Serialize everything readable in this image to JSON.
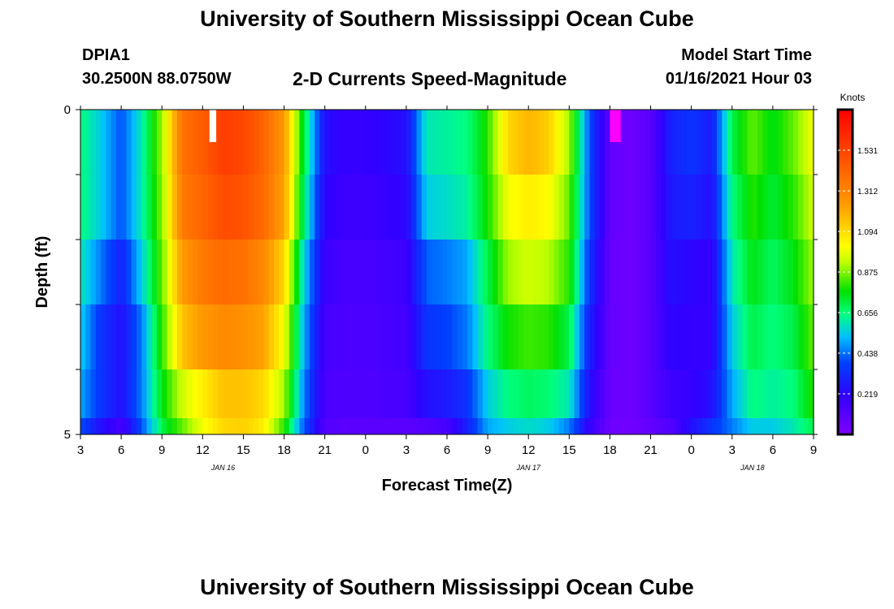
{
  "header": {
    "title": "University of Southern Mississippi Ocean Cube",
    "station_id": "DPIA1",
    "coordinates": "30.2500N 88.0750W",
    "subtitle": "2-D Currents Speed-Magnitude",
    "model_start_label": "Model Start Time",
    "model_start_value": "01/16/2021 Hour 03"
  },
  "footer": {
    "title": "University of Southern Mississippi Ocean Cube"
  },
  "chart_data": {
    "type": "heatmap",
    "title": "2-D Currents Speed-Magnitude",
    "xlabel": "Forecast Time(Z)",
    "ylabel": "Depth (ft)",
    "x_unit": "forecast hours from 01/16/2021 Hour 03",
    "xlim": [
      0,
      54
    ],
    "ylim": [
      0,
      5
    ],
    "y_reversed": true,
    "x_tick_labels": [
      "3",
      "6",
      "9",
      "12",
      "15",
      "18",
      "21",
      "0",
      "3",
      "6",
      "9",
      "12",
      "15",
      "18",
      "21",
      "0",
      "3",
      "6",
      "9"
    ],
    "y_tick_labels": [
      "0",
      "5"
    ],
    "date_labels": [
      {
        "text": "JAN 16",
        "x": 10.5
      },
      {
        "text": "JAN 17",
        "x": 33
      },
      {
        "text": "JAN 18",
        "x": 49.5
      }
    ],
    "colorbar": {
      "label": "Knots",
      "min": 0.0,
      "max": 1.75,
      "tick_labels": [
        "1.531",
        "1.312",
        "1.094",
        "0.875",
        "0.656",
        "0.438",
        "0.219"
      ],
      "tick_values": [
        1.531,
        1.312,
        1.094,
        0.875,
        0.656,
        0.438,
        0.219
      ]
    },
    "depth_rows": [
      {
        "depth": 0.5,
        "times": [
          0,
          1.5,
          3,
          4.5,
          6,
          7.5,
          9,
          10.5,
          12,
          13.5,
          15,
          16.5,
          18,
          19.5,
          21,
          22.5,
          24,
          25.5,
          27,
          28.5,
          30,
          31.5,
          33,
          34.5,
          36,
          37.5,
          39,
          40.5,
          42,
          43.5,
          45,
          46.5,
          48,
          49.5,
          51,
          52.5,
          54
        ],
        "values": [
          0.65,
          0.55,
          0.4,
          0.6,
          0.9,
          1.38,
          1.45,
          1.55,
          1.52,
          1.42,
          1.25,
          0.7,
          0.25,
          0.2,
          0.2,
          0.22,
          0.25,
          0.6,
          0.62,
          0.65,
          0.8,
          1.1,
          1.18,
          1.12,
          0.9,
          0.4,
          0.08,
          0.05,
          0.1,
          0.3,
          0.35,
          0.28,
          0.7,
          0.85,
          0.75,
          0.85,
          1.0
        ]
      },
      {
        "depth": 1.5,
        "times": [
          0,
          1.5,
          3,
          4.5,
          6,
          7.5,
          9,
          10.5,
          12,
          13.5,
          15,
          16.5,
          18,
          19.5,
          21,
          22.5,
          24,
          25.5,
          27,
          28.5,
          30,
          31.5,
          33,
          34.5,
          36,
          37.5,
          39,
          40.5,
          42,
          43.5,
          45,
          46.5,
          48,
          49.5,
          51,
          52.5,
          54
        ],
        "values": [
          0.65,
          0.55,
          0.4,
          0.6,
          0.88,
          1.35,
          1.42,
          1.5,
          1.48,
          1.4,
          1.22,
          0.65,
          0.22,
          0.18,
          0.18,
          0.2,
          0.22,
          0.55,
          0.58,
          0.62,
          0.78,
          1.0,
          1.05,
          1.02,
          0.85,
          0.4,
          0.08,
          0.05,
          0.1,
          0.28,
          0.3,
          0.25,
          0.65,
          0.8,
          0.72,
          0.8,
          0.95
        ]
      },
      {
        "depth": 2.5,
        "times": [
          0,
          1.5,
          3,
          4.5,
          6,
          7.5,
          9,
          10.5,
          12,
          13.5,
          15,
          16.5,
          18,
          19.5,
          21,
          22.5,
          24,
          25.5,
          27,
          28.5,
          30,
          31.5,
          33,
          34.5,
          36,
          37.5,
          39,
          40.5,
          42,
          43.5,
          45,
          46.5,
          48,
          49.5,
          51,
          52.5,
          54
        ],
        "values": [
          0.6,
          0.45,
          0.3,
          0.55,
          0.85,
          1.25,
          1.35,
          1.4,
          1.38,
          1.3,
          1.1,
          0.55,
          0.18,
          0.15,
          0.15,
          0.16,
          0.18,
          0.42,
          0.45,
          0.5,
          0.7,
          0.9,
          0.95,
          0.92,
          0.8,
          0.35,
          0.07,
          0.05,
          0.1,
          0.25,
          0.22,
          0.2,
          0.6,
          0.75,
          0.68,
          0.75,
          0.9
        ]
      },
      {
        "depth": 3.5,
        "times": [
          0,
          1.5,
          3,
          4.5,
          6,
          7.5,
          9,
          10.5,
          12,
          13.5,
          15,
          16.5,
          18,
          19.5,
          21,
          22.5,
          24,
          25.5,
          27,
          28.5,
          30,
          31.5,
          33,
          34.5,
          36,
          37.5,
          39,
          40.5,
          42,
          43.5,
          45,
          46.5,
          48,
          49.5,
          51,
          52.5,
          54
        ],
        "values": [
          0.55,
          0.35,
          0.25,
          0.45,
          0.8,
          1.15,
          1.25,
          1.3,
          1.28,
          1.22,
          1.0,
          0.5,
          0.15,
          0.14,
          0.14,
          0.15,
          0.16,
          0.35,
          0.38,
          0.45,
          0.65,
          0.78,
          0.82,
          0.8,
          0.7,
          0.3,
          0.07,
          0.05,
          0.1,
          0.22,
          0.2,
          0.2,
          0.55,
          0.7,
          0.65,
          0.7,
          0.85
        ]
      },
      {
        "depth": 4.5,
        "times": [
          0,
          1.5,
          3,
          4.5,
          6,
          7.5,
          9,
          10.5,
          12,
          13.5,
          15,
          16.5,
          18,
          19.5,
          21,
          22.5,
          24,
          25.5,
          27,
          28.5,
          30,
          31.5,
          33,
          34.5,
          36,
          37.5,
          39,
          40.5,
          42,
          43.5,
          45,
          46.5,
          48,
          49.5,
          51,
          52.5,
          54
        ],
        "values": [
          0.5,
          0.35,
          0.25,
          0.45,
          0.75,
          0.95,
          1.05,
          1.15,
          1.15,
          1.1,
          0.9,
          0.45,
          0.14,
          0.13,
          0.13,
          0.14,
          0.15,
          0.25,
          0.28,
          0.35,
          0.55,
          0.65,
          0.68,
          0.66,
          0.6,
          0.25,
          0.06,
          0.05,
          0.1,
          0.18,
          0.2,
          0.25,
          0.5,
          0.65,
          0.62,
          0.65,
          0.8
        ]
      },
      {
        "depth": 5.0,
        "times": [
          0,
          1.5,
          3,
          4.5,
          6,
          7.5,
          9,
          10.5,
          12,
          13.5,
          15,
          16.5,
          18,
          19.5,
          21,
          22.5,
          24,
          25.5,
          27,
          28.5,
          30,
          31.5,
          33,
          34.5,
          36,
          37.5,
          39,
          40.5,
          42,
          43.5,
          45,
          46.5,
          48,
          49.5,
          51,
          52.5,
          54
        ],
        "values": [
          0.4,
          0.25,
          0.15,
          0.4,
          0.7,
          0.85,
          1.0,
          1.1,
          1.12,
          1.05,
          0.8,
          0.4,
          0.12,
          0.1,
          0.1,
          0.1,
          0.1,
          0.12,
          0.15,
          0.3,
          0.5,
          0.55,
          0.58,
          0.55,
          0.45,
          0.2,
          0.05,
          0.04,
          0.08,
          0.12,
          0.25,
          0.35,
          0.45,
          0.55,
          0.55,
          0.6,
          0.7
        ]
      }
    ],
    "annotations": [
      {
        "type": "max-marker",
        "color": "#ffffff",
        "x_start": 9.5,
        "x_end": 10.0,
        "depth_start": 0.0,
        "depth_end": 0.5
      },
      {
        "type": "min-marker",
        "color": "#ff00ff",
        "x_start": 39.0,
        "x_end": 39.8,
        "depth_start": 0.0,
        "depth_end": 0.5
      }
    ]
  }
}
